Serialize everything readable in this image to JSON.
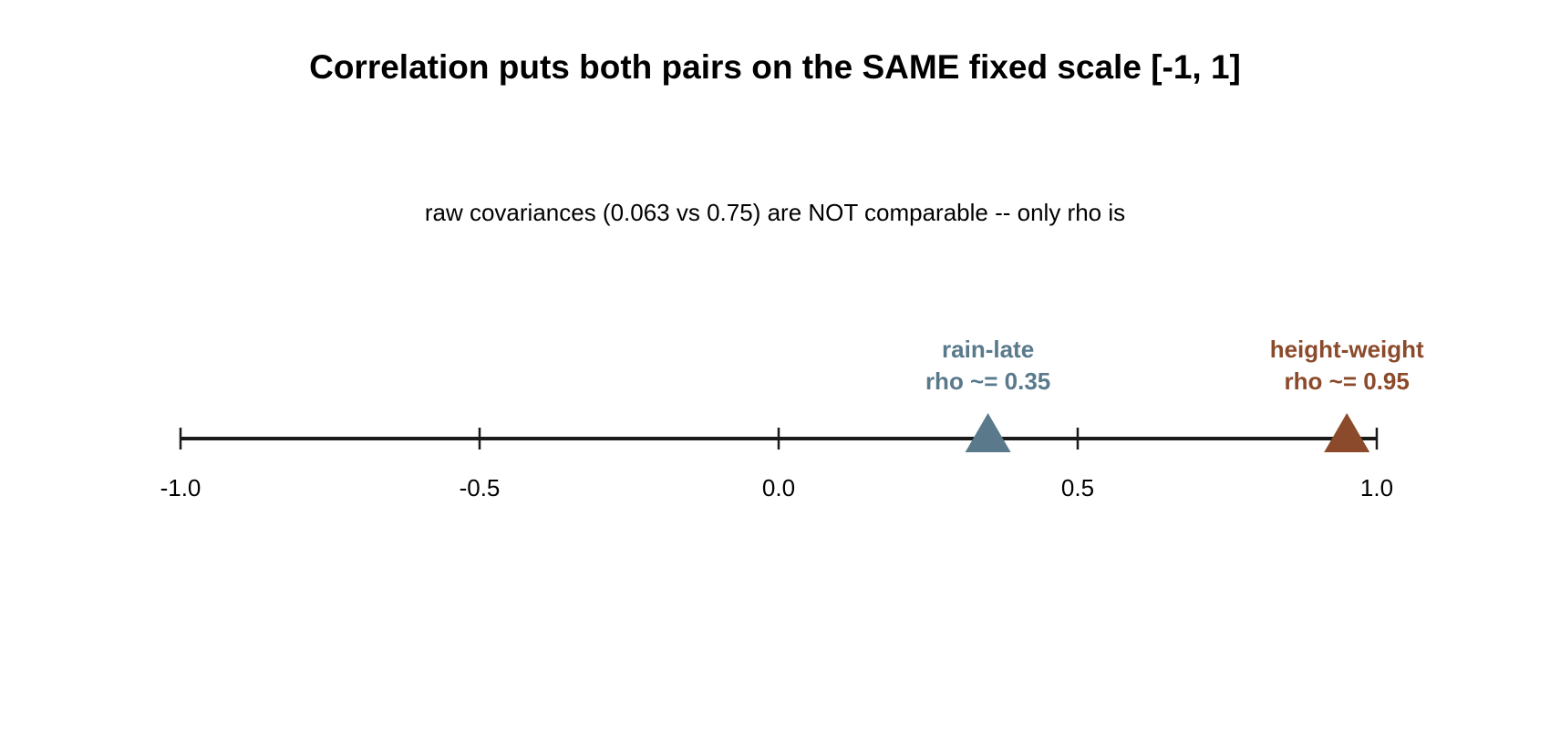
{
  "chart_data": {
    "type": "scatter",
    "title": "Correlation puts both pairs on the SAME fixed scale [-1, 1]",
    "subtitle": "raw covariances (0.063 vs 0.75) are NOT comparable -- only rho is",
    "xlim": [
      -1.0,
      1.0
    ],
    "ticks": [
      -1.0,
      -0.5,
      0.0,
      0.5,
      1.0
    ],
    "tick_labels": [
      "-1.0",
      "-0.5",
      "0.0",
      "0.5",
      "1.0"
    ],
    "grid": false,
    "points": [
      {
        "name": "rain-late",
        "label": "rho ~= 0.35",
        "value": 0.35,
        "color": "#5a7a8c"
      },
      {
        "name": "height-weight",
        "label": "rho ~= 0.95",
        "value": 0.95,
        "color": "#8b4a2b"
      }
    ],
    "axis_color": "#1a1a1a"
  }
}
